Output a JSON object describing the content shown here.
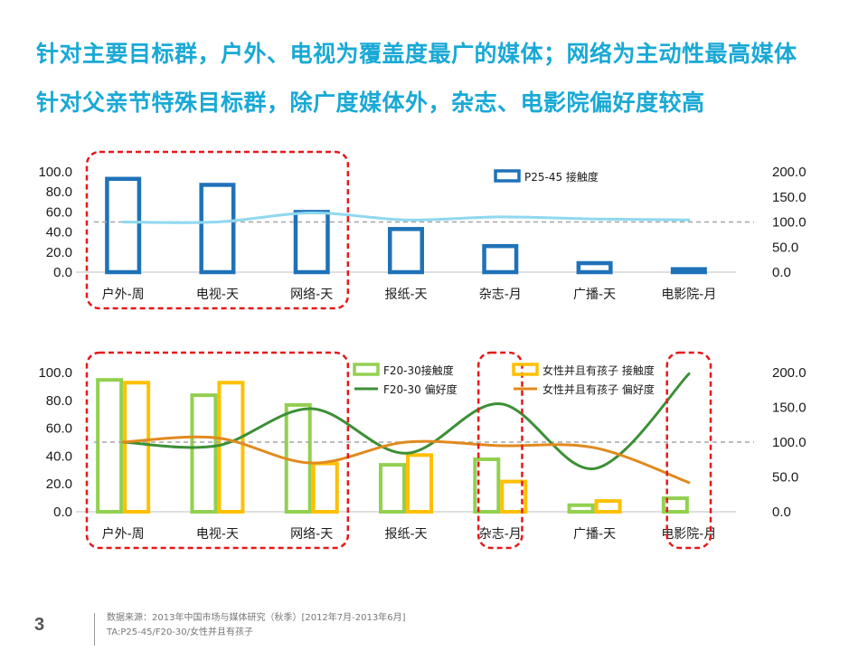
{
  "headline": {
    "line1": "针对主要目标群，户外、电视为覆盖度最广的媒体；网络为主动性最高媒体",
    "line2": "针对父亲节特殊目标群，除广度媒体外，杂志、电影院偏好度较高"
  },
  "colors": {
    "headline": "#19a9d5",
    "p25_bar": "#1f72b8",
    "p25_line": "#8fd8f0",
    "f20_bar": "#92d050",
    "f20_line": "#3c8f36",
    "mom_bar": "#ffc000",
    "mom_line": "#e08a1e",
    "highlight": "#e5191b",
    "reference_line": "#a6a6a6"
  },
  "chart_data": [
    {
      "type": "bar",
      "categories": [
        "户外-周",
        "电视-天",
        "网络-天",
        "报纸-天",
        "杂志-月",
        "广播-天",
        "电影院-月"
      ],
      "series": [
        {
          "name": "P25-45 接触度",
          "axis": "left",
          "values": [
            95,
            89,
            62,
            45,
            28,
            11,
            5
          ]
        },
        {
          "axis": "right",
          "kind": "line",
          "values": [
            100,
            100,
            118,
            104,
            110,
            106,
            104
          ]
        }
      ],
      "ylim_left": [
        0,
        100
      ],
      "yticks_left": [
        "0.0",
        "20.0",
        "40.0",
        "60.0",
        "80.0",
        "100.0"
      ],
      "ylim_right": [
        0,
        200
      ],
      "yticks_right": [
        "0.0",
        "50.0",
        "100.0",
        "150.0",
        "200.0"
      ],
      "reference_line": 100,
      "legend_position": "top-center",
      "highlight_groups": [
        [
          "户外-周",
          "电视-天",
          "网络-天"
        ]
      ]
    },
    {
      "type": "bar",
      "categories": [
        "户外-周",
        "电视-天",
        "网络-天",
        "报纸-天",
        "杂志-月",
        "广播-天",
        "电影院-月"
      ],
      "series": [
        {
          "name": "F20-30接触度",
          "axis": "left",
          "kind": "bar",
          "values": [
            96,
            85,
            78,
            35,
            39,
            6,
            11
          ]
        },
        {
          "name": "女性并且有孩子 接触度",
          "axis": "left",
          "kind": "bar",
          "values": [
            94,
            94,
            36,
            42,
            23,
            9,
            1
          ]
        },
        {
          "name": "F20-30 偏好度",
          "axis": "right",
          "kind": "line",
          "values": [
            100,
            95,
            148,
            84,
            155,
            62,
            198
          ]
        },
        {
          "name": "女性并且有孩子 偏好度",
          "axis": "right",
          "kind": "line",
          "values": [
            100,
            106,
            70,
            100,
            95,
            92,
            42
          ]
        }
      ],
      "ylim_left": [
        0,
        100
      ],
      "yticks_left": [
        "0.0",
        "20.0",
        "40.0",
        "60.0",
        "80.0",
        "100.0"
      ],
      "ylim_right": [
        0,
        200
      ],
      "yticks_right": [
        "0.0",
        "50.0",
        "100.0",
        "150.0",
        "200.0"
      ],
      "reference_line": 100,
      "legend_position": "top-right",
      "highlight_groups": [
        [
          "户外-周",
          "电视-天",
          "网络-天"
        ],
        [
          "杂志-月"
        ],
        [
          "电影院-月"
        ]
      ]
    }
  ],
  "footer": {
    "page_number": "3",
    "source": "数据来源：2013年中国市场与媒体研究（秋季）[2012年7月-2013年6月]",
    "target": "TA:P25-45/F20-30/女性并且有孩子"
  }
}
